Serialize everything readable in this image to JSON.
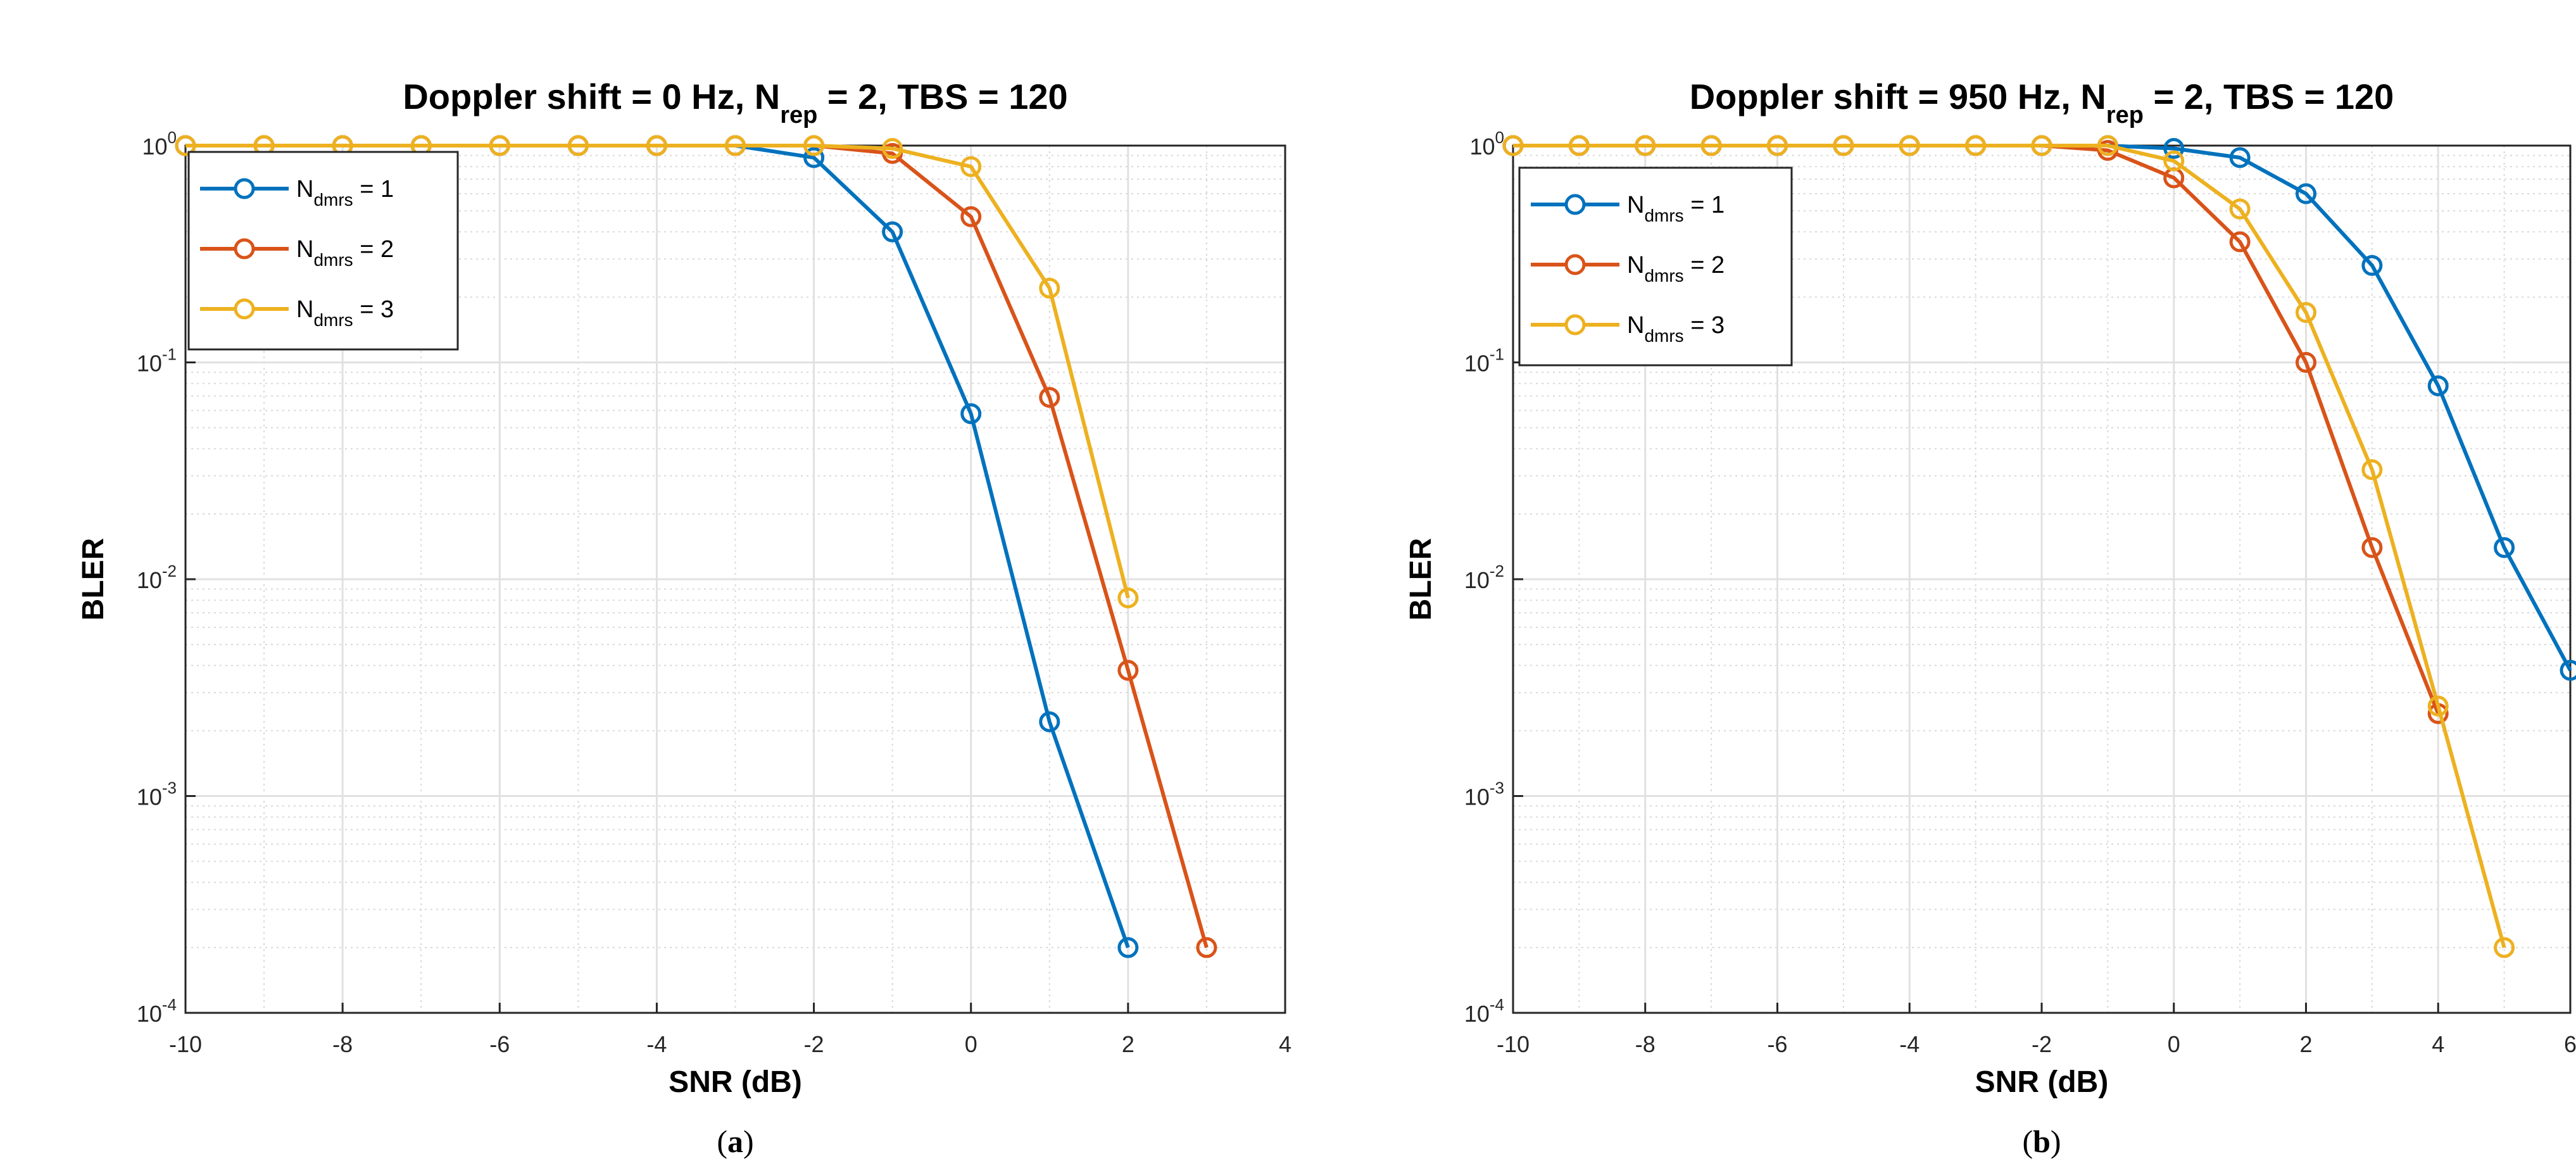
{
  "chart_data": [
    {
      "type": "line",
      "title": {
        "pre": "Doppler shift = 0 Hz, N",
        "sub": "rep",
        "post": " = 2, TBS = 120"
      },
      "xlabel": "SNR (dB)",
      "ylabel": "BLER",
      "xlim": [
        -10,
        4
      ],
      "ylim": [
        0.0001,
        1
      ],
      "yscale": "log",
      "grid": true,
      "minor_grid": true,
      "legend_position": "top-left",
      "xticks": [
        "-10",
        "-8",
        "-6",
        "-4",
        "-2",
        "0",
        "2",
        "4"
      ],
      "yticks": [
        {
          "base": "10",
          "exp": "0"
        },
        {
          "base": "10",
          "exp": "-1"
        },
        {
          "base": "10",
          "exp": "-2"
        },
        {
          "base": "10",
          "exp": "-3"
        },
        {
          "base": "10",
          "exp": "-4"
        }
      ],
      "caption": {
        "open": "(",
        "letter": "a",
        "close": ")"
      },
      "series": [
        {
          "name": {
            "pre": "N",
            "sub": "dmrs",
            "post": " = 1"
          },
          "color": "#0072BD",
          "x": [
            -10,
            -9,
            -8,
            -7,
            -6,
            -5,
            -4,
            -3,
            -2,
            -1,
            0,
            1,
            2
          ],
          "y": [
            1,
            1,
            1,
            1,
            1,
            1,
            1,
            1,
            0.88,
            0.4,
            0.058,
            0.0022,
            0.0002
          ]
        },
        {
          "name": {
            "pre": "N",
            "sub": "dmrs",
            "post": " = 2"
          },
          "color": "#D95319",
          "x": [
            -10,
            -9,
            -8,
            -7,
            -6,
            -5,
            -4,
            -3,
            -2,
            -1,
            0,
            1,
            2,
            3
          ],
          "y": [
            1,
            1,
            1,
            1,
            1,
            1,
            1,
            1,
            1,
            0.92,
            0.47,
            0.069,
            0.0038,
            0.0002
          ]
        },
        {
          "name": {
            "pre": "N",
            "sub": "dmrs",
            "post": " = 3"
          },
          "color": "#EDB120",
          "x": [
            -10,
            -9,
            -8,
            -7,
            -6,
            -5,
            -4,
            -3,
            -2,
            -1,
            0,
            1,
            2
          ],
          "y": [
            1,
            1,
            1,
            1,
            1,
            1,
            1,
            1,
            1,
            0.97,
            0.8,
            0.22,
            0.0082
          ]
        }
      ]
    },
    {
      "type": "line",
      "title": {
        "pre": "Doppler shift = 950 Hz, N",
        "sub": "rep",
        "post": " = 2, TBS = 120"
      },
      "xlabel": "SNR (dB)",
      "ylabel": "BLER",
      "xlim": [
        -10,
        6
      ],
      "ylim": [
        0.0001,
        1
      ],
      "yscale": "log",
      "grid": true,
      "minor_grid": true,
      "legend_position": "top-left",
      "xticks": [
        "-10",
        "-8",
        "-6",
        "-4",
        "-2",
        "0",
        "2",
        "4",
        "6"
      ],
      "yticks": [
        {
          "base": "10",
          "exp": "0"
        },
        {
          "base": "10",
          "exp": "-1"
        },
        {
          "base": "10",
          "exp": "-2"
        },
        {
          "base": "10",
          "exp": "-3"
        },
        {
          "base": "10",
          "exp": "-4"
        }
      ],
      "caption": {
        "open": "(",
        "letter": "b",
        "close": ")"
      },
      "series": [
        {
          "name": {
            "pre": "N",
            "sub": "dmrs",
            "post": " = 1"
          },
          "color": "#0072BD",
          "x": [
            -10,
            -9,
            -8,
            -7,
            -6,
            -5,
            -4,
            -3,
            -2,
            -1,
            0,
            1,
            2,
            3,
            4,
            5,
            6
          ],
          "y": [
            1,
            1,
            1,
            1,
            1,
            1,
            1,
            1,
            1,
            1,
            0.97,
            0.88,
            0.6,
            0.28,
            0.078,
            0.014,
            0.0038
          ]
        },
        {
          "name": {
            "pre": "N",
            "sub": "dmrs",
            "post": " = 2"
          },
          "color": "#D95319",
          "x": [
            -10,
            -9,
            -8,
            -7,
            -6,
            -5,
            -4,
            -3,
            -2,
            -1,
            0,
            1,
            2,
            3,
            4
          ],
          "y": [
            1,
            1,
            1,
            1,
            1,
            1,
            1,
            1,
            1,
            0.95,
            0.71,
            0.36,
            0.1,
            0.014,
            0.0024
          ]
        },
        {
          "name": {
            "pre": "N",
            "sub": "dmrs",
            "post": " = 3"
          },
          "color": "#EDB120",
          "x": [
            -10,
            -9,
            -8,
            -7,
            -6,
            -5,
            -4,
            -3,
            -2,
            -1,
            0,
            1,
            2,
            3,
            4,
            5
          ],
          "y": [
            1,
            1,
            1,
            1,
            1,
            1,
            1,
            1,
            1,
            1,
            0.85,
            0.51,
            0.17,
            0.032,
            0.0026,
            0.0002
          ]
        }
      ]
    }
  ]
}
